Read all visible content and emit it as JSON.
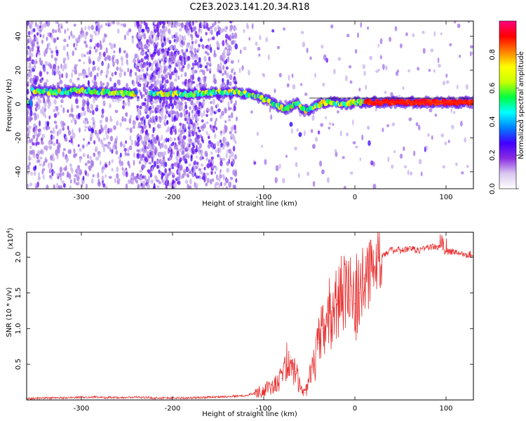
{
  "figure_title": "C2E3.2023.141.20.34.R18",
  "chart_data": [
    {
      "type": "heatmap",
      "title": "C2E3.2023.141.20.34.R18",
      "xlabel": "Height of straight line (km)",
      "ylabel": "Frequency (Hz)",
      "xlim": [
        -360,
        130
      ],
      "ylim": [
        -50,
        49
      ],
      "x_ticks": [
        -300,
        -200,
        -100,
        0,
        100
      ],
      "x_tick_labels": [
        "-300",
        "-200",
        "-100",
        "0",
        "100"
      ],
      "y_ticks": [
        -40,
        -20,
        0,
        20,
        40
      ],
      "y_tick_labels": [
        "-40",
        "-20",
        "0",
        "20",
        "40"
      ],
      "colorbar": {
        "label": "Normalized spectral amplitude",
        "range": [
          0,
          1
        ],
        "ticks": [
          0.0,
          0.2,
          0.4,
          0.6,
          0.8
        ],
        "tick_labels": [
          "0.0",
          "0.2",
          "0.4",
          "0.6",
          "0.8"
        ],
        "colormap": [
          "#ffffff",
          "#d9c8f0",
          "#8a2be2",
          "#4000ff",
          "#0080ff",
          "#00ffff",
          "#00ff40",
          "#c8ff00",
          "#ffff00",
          "#ff8000",
          "#ff0000",
          "#ff0080"
        ]
      },
      "ridge": {
        "name": "dominant frequency",
        "x": [
          -355,
          -330,
          -300,
          -270,
          -240,
          -210,
          -180,
          -150,
          -130,
          -110,
          -95,
          -85,
          -75,
          -65,
          -55,
          -45,
          -35,
          -25,
          -10,
          0,
          20,
          60,
          100,
          130
        ],
        "y": [
          8,
          7,
          8,
          7,
          6,
          6,
          6,
          7,
          7,
          5,
          2,
          -1,
          -3,
          1,
          -4,
          -2,
          1,
          1,
          0,
          1,
          1,
          1,
          1,
          1
        ]
      },
      "secondary_trail": {
        "x": [
          -70,
          -60,
          -45,
          -35
        ],
        "y": [
          -12,
          -18,
          -25,
          -40
        ]
      }
    },
    {
      "type": "line",
      "title": "",
      "xlabel": "Height of straight line (km)",
      "ylabel": "SNR (10 * v/v)",
      "y_multiplier_label": "(x10",
      "y_multiplier_exponent": "4",
      "y_multiplier_close": ")",
      "xlim": [
        -360,
        130
      ],
      "ylim": [
        0,
        2.35
      ],
      "x_ticks": [
        -300,
        -200,
        -100,
        0,
        100
      ],
      "x_tick_labels": [
        "-300",
        "-200",
        "-100",
        "0",
        "100"
      ],
      "y_ticks": [
        0.5,
        1.0,
        1.5,
        2.0
      ],
      "y_tick_labels": [
        "0.5",
        "1.0",
        "1.5",
        "2.0"
      ],
      "series": [
        {
          "name": "SNR",
          "color": "#e83030",
          "x": [
            -360,
            -340,
            -320,
            -300,
            -280,
            -260,
            -240,
            -220,
            -200,
            -180,
            -160,
            -140,
            -120,
            -110,
            -100,
            -90,
            -80,
            -75,
            -70,
            -65,
            -60,
            -55,
            -50,
            -45,
            -40,
            -35,
            -30,
            -25,
            -20,
            -15,
            -10,
            -5,
            0,
            5,
            10,
            15,
            20,
            25,
            30,
            40,
            50,
            60,
            70,
            80,
            90,
            100,
            110,
            120,
            130
          ],
          "values": [
            0.02,
            0.03,
            0.03,
            0.04,
            0.04,
            0.03,
            0.04,
            0.03,
            0.03,
            0.03,
            0.04,
            0.05,
            0.06,
            0.1,
            0.15,
            0.2,
            0.3,
            0.5,
            0.6,
            0.4,
            0.2,
            0.1,
            0.3,
            0.5,
            0.8,
            1.0,
            1.2,
            1.3,
            1.4,
            1.55,
            1.6,
            1.4,
            1.35,
            1.5,
            1.7,
            1.85,
            1.95,
            2.0,
            2.05,
            2.1,
            2.1,
            2.12,
            2.1,
            2.15,
            2.15,
            2.08,
            2.08,
            2.05,
            2.05
          ]
        }
      ]
    }
  ]
}
